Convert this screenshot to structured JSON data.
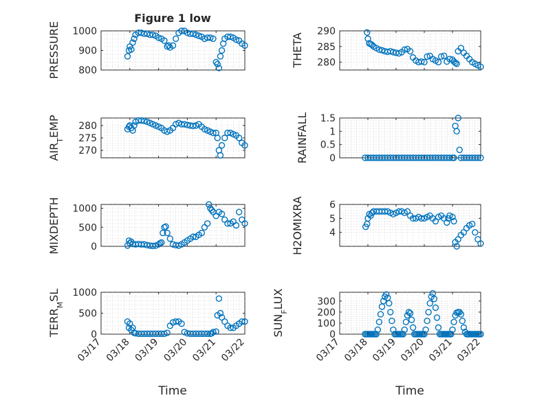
{
  "chart_data": [
    {
      "type": "scatter",
      "title": "Figure 1 low",
      "ylabel": "PRESSURE",
      "xlabel": "",
      "ylim": [
        800,
        1000
      ],
      "yticks": [
        800,
        900,
        1000
      ],
      "xlim": [
        0,
        5
      ],
      "x_tick_labels": [
        "03/17",
        "03/18",
        "03/19",
        "03/20",
        "03/21",
        "03/22"
      ],
      "x": [
        0.92,
        0.97,
        1.0,
        1.05,
        1.1,
        1.15,
        1.2,
        1.3,
        1.4,
        1.5,
        1.6,
        1.7,
        1.8,
        1.9,
        2.0,
        2.1,
        2.2,
        2.3,
        2.35,
        2.4,
        2.5,
        2.6,
        2.7,
        2.8,
        2.9,
        3.0,
        3.1,
        3.2,
        3.3,
        3.4,
        3.5,
        3.6,
        3.7,
        3.8,
        3.9,
        4.0,
        4.05,
        4.1,
        4.15,
        4.2,
        4.25,
        4.3,
        4.4,
        4.5,
        4.6,
        4.7,
        4.8,
        4.9,
        5.0
      ],
      "y": [
        870,
        900,
        920,
        905,
        940,
        960,
        980,
        990,
        990,
        985,
        985,
        980,
        980,
        975,
        965,
        960,
        950,
        920,
        925,
        915,
        925,
        960,
        990,
        1000,
        1000,
        990,
        985,
        985,
        980,
        975,
        970,
        960,
        965,
        965,
        960,
        840,
        830,
        810,
        870,
        900,
        935,
        960,
        970,
        970,
        965,
        955,
        950,
        935,
        925
      ]
    },
    {
      "type": "scatter",
      "title": "",
      "ylabel": "THETA",
      "xlabel": "",
      "ylim": [
        277.5,
        290
      ],
      "yticks": [
        280,
        285,
        290
      ],
      "xlim": [
        0,
        5
      ],
      "x_tick_labels": [
        "03/17",
        "03/18",
        "03/19",
        "03/20",
        "03/21",
        "03/22"
      ],
      "x": [
        0.97,
        1.0,
        1.05,
        1.1,
        1.15,
        1.2,
        1.3,
        1.4,
        1.5,
        1.6,
        1.7,
        1.8,
        1.9,
        2.0,
        2.1,
        2.2,
        2.3,
        2.4,
        2.5,
        2.6,
        2.7,
        2.8,
        2.9,
        3.0,
        3.1,
        3.2,
        3.3,
        3.4,
        3.5,
        3.6,
        3.7,
        3.8,
        3.9,
        4.0,
        4.05,
        4.1,
        4.15,
        4.2,
        4.3,
        4.4,
        4.5,
        4.6,
        4.7,
        4.8,
        4.9,
        5.0
      ],
      "y": [
        289.5,
        287.5,
        286,
        285.8,
        285.5,
        285,
        284.5,
        284,
        283.8,
        283.5,
        283.3,
        283.5,
        283.2,
        283,
        282.8,
        283.2,
        284,
        284.2,
        283.5,
        281.5,
        280.5,
        280,
        280.2,
        280,
        281.8,
        282,
        281,
        280.5,
        280,
        281.8,
        282,
        280.2,
        281,
        280.8,
        280.2,
        279.8,
        279.5,
        283.5,
        284.5,
        283,
        282,
        281,
        280,
        279.5,
        279,
        278.5
      ]
    },
    {
      "type": "scatter",
      "title": "",
      "ylabel": "AIR_TEMP",
      "xlabel": "",
      "ylim": [
        267,
        283
      ],
      "yticks": [
        270,
        275,
        280
      ],
      "xlim": [
        0,
        5
      ],
      "x_tick_labels": [
        "03/17",
        "03/18",
        "03/19",
        "03/20",
        "03/21",
        "03/22"
      ],
      "x": [
        0.92,
        0.97,
        1.0,
        1.05,
        1.1,
        1.15,
        1.2,
        1.3,
        1.4,
        1.5,
        1.6,
        1.7,
        1.8,
        1.9,
        2.0,
        2.1,
        2.2,
        2.3,
        2.4,
        2.5,
        2.6,
        2.7,
        2.8,
        2.9,
        3.0,
        3.1,
        3.2,
        3.3,
        3.4,
        3.5,
        3.6,
        3.7,
        3.8,
        3.9,
        4.0,
        4.05,
        4.1,
        4.15,
        4.2,
        4.3,
        4.4,
        4.5,
        4.6,
        4.7,
        4.8,
        4.9,
        5.0
      ],
      "y": [
        278.5,
        279.5,
        280,
        279,
        278,
        280,
        281.5,
        282,
        282,
        281.8,
        281.5,
        281,
        280.5,
        280,
        279.5,
        279,
        278,
        277.5,
        278,
        279,
        280.5,
        281,
        280.5,
        280.5,
        280.2,
        280,
        279.8,
        280,
        280.5,
        279.5,
        278.5,
        278,
        277.5,
        277,
        277,
        275,
        270,
        268,
        272,
        275,
        277,
        277,
        276.5,
        276,
        275,
        273,
        272
      ]
    },
    {
      "type": "scatter",
      "title": "",
      "ylabel": "RAINFALL",
      "xlabel": "",
      "ylim": [
        0,
        1.5
      ],
      "yticks": [
        0,
        0.5,
        1,
        1.5
      ],
      "xlim": [
        0,
        5
      ],
      "x_tick_labels": [
        "03/17",
        "03/18",
        "03/19",
        "03/20",
        "03/21",
        "03/22"
      ],
      "x": [
        0.9,
        1.0,
        1.1,
        1.2,
        1.3,
        1.4,
        1.5,
        1.6,
        1.7,
        1.8,
        1.9,
        2.0,
        2.1,
        2.2,
        2.3,
        2.4,
        2.5,
        2.6,
        2.7,
        2.8,
        2.9,
        3.0,
        3.1,
        3.2,
        3.3,
        3.4,
        3.5,
        3.6,
        3.7,
        3.8,
        3.9,
        4.0,
        4.05,
        4.1,
        4.15,
        4.2,
        4.25,
        4.3,
        4.4,
        4.5,
        4.6,
        4.7,
        4.8,
        4.9,
        5.0
      ],
      "y": [
        0,
        0,
        0,
        0,
        0,
        0,
        0,
        0,
        0,
        0,
        0,
        0,
        0,
        0,
        0,
        0,
        0,
        0,
        0,
        0,
        0,
        0,
        0,
        0,
        0,
        0,
        0,
        0,
        0,
        0,
        0,
        0,
        0,
        1.2,
        1.0,
        1.5,
        0.3,
        0,
        0,
        0,
        0,
        0,
        0,
        0,
        0
      ]
    },
    {
      "type": "scatter",
      "title": "",
      "ylabel": "MIXDEPTH",
      "xlabel": "",
      "ylim": [
        0,
        1100
      ],
      "yticks": [
        0,
        500,
        1000
      ],
      "xlim": [
        0,
        5
      ],
      "x_tick_labels": [
        "03/17",
        "03/18",
        "03/19",
        "03/20",
        "03/21",
        "03/22"
      ],
      "x": [
        0.92,
        0.97,
        1.0,
        1.05,
        1.1,
        1.2,
        1.3,
        1.4,
        1.5,
        1.6,
        1.7,
        1.8,
        1.9,
        2.0,
        2.05,
        2.1,
        2.15,
        2.2,
        2.25,
        2.3,
        2.4,
        2.5,
        2.6,
        2.7,
        2.8,
        2.9,
        3.0,
        3.1,
        3.2,
        3.3,
        3.4,
        3.5,
        3.6,
        3.7,
        3.75,
        3.8,
        3.85,
        3.9,
        4.0,
        4.1,
        4.2,
        4.3,
        4.4,
        4.5,
        4.6,
        4.7,
        4.8,
        4.9,
        5.0
      ],
      "y": [
        20,
        150,
        80,
        120,
        60,
        50,
        60,
        50,
        50,
        30,
        20,
        10,
        20,
        50,
        80,
        100,
        350,
        500,
        520,
        350,
        200,
        50,
        30,
        20,
        50,
        100,
        150,
        200,
        250,
        250,
        300,
        350,
        500,
        600,
        1100,
        1000,
        950,
        900,
        800,
        900,
        850,
        700,
        600,
        600,
        650,
        550,
        900,
        700,
        600
      ]
    },
    {
      "type": "scatter",
      "title": "",
      "ylabel": "H2OMIXRA",
      "xlabel": "",
      "ylim": [
        3,
        6
      ],
      "yticks": [
        4,
        5,
        6
      ],
      "xlim": [
        0,
        5
      ],
      "x_tick_labels": [
        "03/17",
        "03/18",
        "03/19",
        "03/20",
        "03/21",
        "03/22"
      ],
      "x": [
        0.92,
        0.97,
        1.0,
        1.05,
        1.1,
        1.15,
        1.2,
        1.3,
        1.4,
        1.5,
        1.6,
        1.7,
        1.8,
        1.9,
        2.0,
        2.1,
        2.2,
        2.3,
        2.4,
        2.5,
        2.6,
        2.7,
        2.8,
        2.9,
        3.0,
        3.1,
        3.2,
        3.3,
        3.4,
        3.5,
        3.6,
        3.7,
        3.8,
        3.85,
        3.9,
        4.0,
        4.05,
        4.1,
        4.15,
        4.2,
        4.3,
        4.4,
        4.5,
        4.6,
        4.7,
        4.8,
        4.9,
        5.0
      ],
      "y": [
        4.4,
        4.6,
        5.0,
        5.3,
        5.2,
        5.4,
        5.5,
        5.5,
        5.5,
        5.5,
        5.5,
        5.5,
        5.4,
        5.3,
        5.4,
        5.5,
        5.5,
        5.4,
        5.5,
        5.2,
        5.0,
        5.0,
        5.1,
        5.0,
        5.0,
        5.1,
        5.2,
        5.0,
        4.8,
        5.1,
        5.2,
        5.0,
        4.7,
        5.0,
        5.2,
        5.1,
        4.8,
        3.3,
        3.0,
        3.5,
        3.8,
        4.0,
        4.3,
        4.5,
        4.6,
        4.0,
        3.5,
        3.2
      ]
    },
    {
      "type": "scatter",
      "title": "",
      "ylabel": "TERR_MSL",
      "xlabel": "Time",
      "ylim": [
        0,
        1000
      ],
      "yticks": [
        0,
        500,
        1000
      ],
      "xlim": [
        0,
        5
      ],
      "x_tick_labels": [
        "03/17",
        "03/18",
        "03/19",
        "03/20",
        "03/21",
        "03/22"
      ],
      "x": [
        0.92,
        0.97,
        1.0,
        1.05,
        1.1,
        1.15,
        1.2,
        1.3,
        1.4,
        1.5,
        1.6,
        1.7,
        1.8,
        1.9,
        2.0,
        2.1,
        2.2,
        2.3,
        2.4,
        2.5,
        2.6,
        2.7,
        2.8,
        2.9,
        3.0,
        3.1,
        3.2,
        3.3,
        3.4,
        3.5,
        3.6,
        3.7,
        3.8,
        3.85,
        3.9,
        4.0,
        4.05,
        4.1,
        4.15,
        4.2,
        4.3,
        4.4,
        4.5,
        4.6,
        4.7,
        4.8,
        4.9,
        5.0
      ],
      "y": [
        300,
        150,
        250,
        100,
        150,
        30,
        20,
        10,
        10,
        10,
        10,
        10,
        10,
        10,
        10,
        10,
        10,
        30,
        200,
        280,
        300,
        300,
        250,
        50,
        20,
        10,
        10,
        10,
        10,
        10,
        10,
        10,
        10,
        20,
        50,
        60,
        450,
        850,
        500,
        400,
        300,
        200,
        150,
        150,
        200,
        250,
        300,
        300
      ]
    },
    {
      "type": "scatter",
      "title": "",
      "ylabel": "SUN_FLUX",
      "xlabel": "Time",
      "ylim": [
        0,
        380
      ],
      "yticks": [
        0,
        100,
        200,
        300
      ],
      "xlim": [
        0,
        5
      ],
      "x_tick_labels": [
        "03/17",
        "03/18",
        "03/19",
        "03/20",
        "03/21",
        "03/22"
      ],
      "x": [
        0.9,
        0.95,
        1.0,
        1.05,
        1.1,
        1.15,
        1.2,
        1.25,
        1.3,
        1.35,
        1.4,
        1.45,
        1.5,
        1.55,
        1.6,
        1.65,
        1.7,
        1.75,
        1.8,
        1.85,
        1.9,
        1.95,
        2.0,
        2.05,
        2.1,
        2.15,
        2.2,
        2.25,
        2.3,
        2.35,
        2.4,
        2.45,
        2.5,
        2.55,
        2.6,
        2.65,
        2.7,
        2.75,
        2.8,
        2.85,
        2.9,
        2.95,
        3.0,
        3.05,
        3.1,
        3.15,
        3.2,
        3.25,
        3.3,
        3.35,
        3.4,
        3.45,
        3.5,
        3.55,
        3.6,
        3.65,
        3.7,
        3.75,
        3.8,
        3.85,
        3.9,
        3.95,
        4.0,
        4.05,
        4.1,
        4.15,
        4.2,
        4.25,
        4.3,
        4.35,
        4.4,
        4.45,
        4.5,
        4.55,
        4.6,
        4.65,
        4.7,
        4.75,
        4.8,
        4.85,
        4.9,
        4.95,
        5.0
      ],
      "y": [
        0,
        0,
        0,
        0,
        0,
        0,
        0,
        0,
        0,
        40,
        110,
        180,
        250,
        300,
        340,
        360,
        330,
        280,
        200,
        120,
        40,
        0,
        0,
        0,
        0,
        0,
        0,
        0,
        40,
        110,
        170,
        200,
        190,
        130,
        60,
        0,
        0,
        0,
        0,
        0,
        0,
        0,
        0,
        40,
        120,
        200,
        280,
        340,
        370,
        320,
        240,
        150,
        60,
        0,
        0,
        0,
        0,
        0,
        0,
        0,
        0,
        0,
        40,
        110,
        170,
        195,
        200,
        200,
        180,
        120,
        60,
        20,
        0,
        0,
        0,
        0,
        0,
        0,
        0,
        0,
        0,
        0,
        0
      ]
    }
  ]
}
